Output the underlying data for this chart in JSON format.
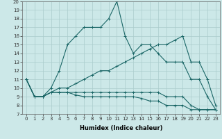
{
  "xlabel": "Humidex (Indice chaleur)",
  "background_color": "#cce8e8",
  "line_color": "#1a6666",
  "grid_color": "#aacccc",
  "xmin": 0,
  "xmax": 23,
  "ymin": 7,
  "ymax": 20,
  "series": [
    [
      11,
      9,
      9,
      10,
      12,
      15,
      16,
      17,
      17,
      17,
      18,
      20,
      16,
      14,
      15,
      15,
      14,
      13,
      13,
      13,
      11,
      11,
      9,
      7.5
    ],
    [
      11,
      9,
      9,
      9.5,
      10,
      10,
      10.5,
      11,
      11.5,
      12,
      12,
      12.5,
      13,
      13.5,
      14,
      14.5,
      15,
      15,
      15.5,
      16,
      13,
      13,
      11,
      8
    ],
    [
      11,
      9,
      9,
      9.5,
      9.5,
      9.5,
      9.5,
      9.5,
      9.5,
      9.5,
      9.5,
      9.5,
      9.5,
      9.5,
      9.5,
      9.5,
      9.5,
      9,
      9,
      9,
      8,
      7.5,
      7.5,
      7.5
    ],
    [
      11,
      9,
      9,
      9.5,
      9.5,
      9.5,
      9.2,
      9.0,
      9.0,
      9.0,
      9.0,
      9.0,
      9.0,
      9.0,
      8.8,
      8.5,
      8.5,
      8.0,
      8.0,
      8.0,
      7.5,
      7.5,
      7.5,
      7.5
    ]
  ],
  "xticks": [
    0,
    1,
    2,
    3,
    4,
    5,
    6,
    7,
    8,
    9,
    10,
    11,
    12,
    13,
    14,
    15,
    16,
    17,
    18,
    19,
    20,
    21,
    22,
    23
  ],
  "yticks": [
    7,
    8,
    9,
    10,
    11,
    12,
    13,
    14,
    15,
    16,
    17,
    18,
    19,
    20
  ],
  "tick_fontsize": 5,
  "xlabel_fontsize": 6,
  "linewidth": 0.8,
  "markersize": 3
}
